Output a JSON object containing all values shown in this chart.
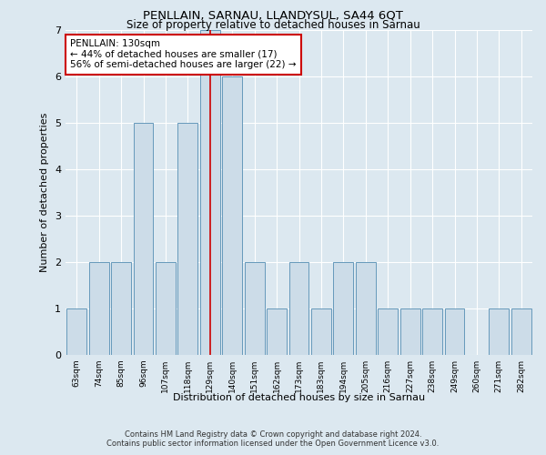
{
  "title": "PENLLAIN, SARNAU, LLANDYSUL, SA44 6QT",
  "subtitle": "Size of property relative to detached houses in Sarnau",
  "xlabel": "Distribution of detached houses by size in Sarnau",
  "ylabel": "Number of detached properties",
  "categories": [
    "63sqm",
    "74sqm",
    "85sqm",
    "96sqm",
    "107sqm",
    "118sqm",
    "129sqm",
    "140sqm",
    "151sqm",
    "162sqm",
    "173sqm",
    "183sqm",
    "194sqm",
    "205sqm",
    "216sqm",
    "227sqm",
    "238sqm",
    "249sqm",
    "260sqm",
    "271sqm",
    "282sqm"
  ],
  "values": [
    1,
    2,
    2,
    5,
    2,
    5,
    7,
    6,
    2,
    1,
    2,
    1,
    2,
    2,
    1,
    1,
    1,
    1,
    0,
    1,
    1
  ],
  "bar_color": "#ccdce8",
  "bar_edge_color": "#6699bb",
  "highlight_index": 6,
  "highlight_line_color": "#cc0000",
  "ylim": [
    0,
    7
  ],
  "yticks": [
    0,
    1,
    2,
    3,
    4,
    5,
    6,
    7
  ],
  "annotation_text": "PENLLAIN: 130sqm\n← 44% of detached houses are smaller (17)\n56% of semi-detached houses are larger (22) →",
  "annotation_box_color": "#ffffff",
  "annotation_box_edge": "#cc0000",
  "footer_line1": "Contains HM Land Registry data © Crown copyright and database right 2024.",
  "footer_line2": "Contains public sector information licensed under the Open Government Licence v3.0.",
  "background_color": "#dce8f0",
  "plot_bg_color": "#dce8f0"
}
